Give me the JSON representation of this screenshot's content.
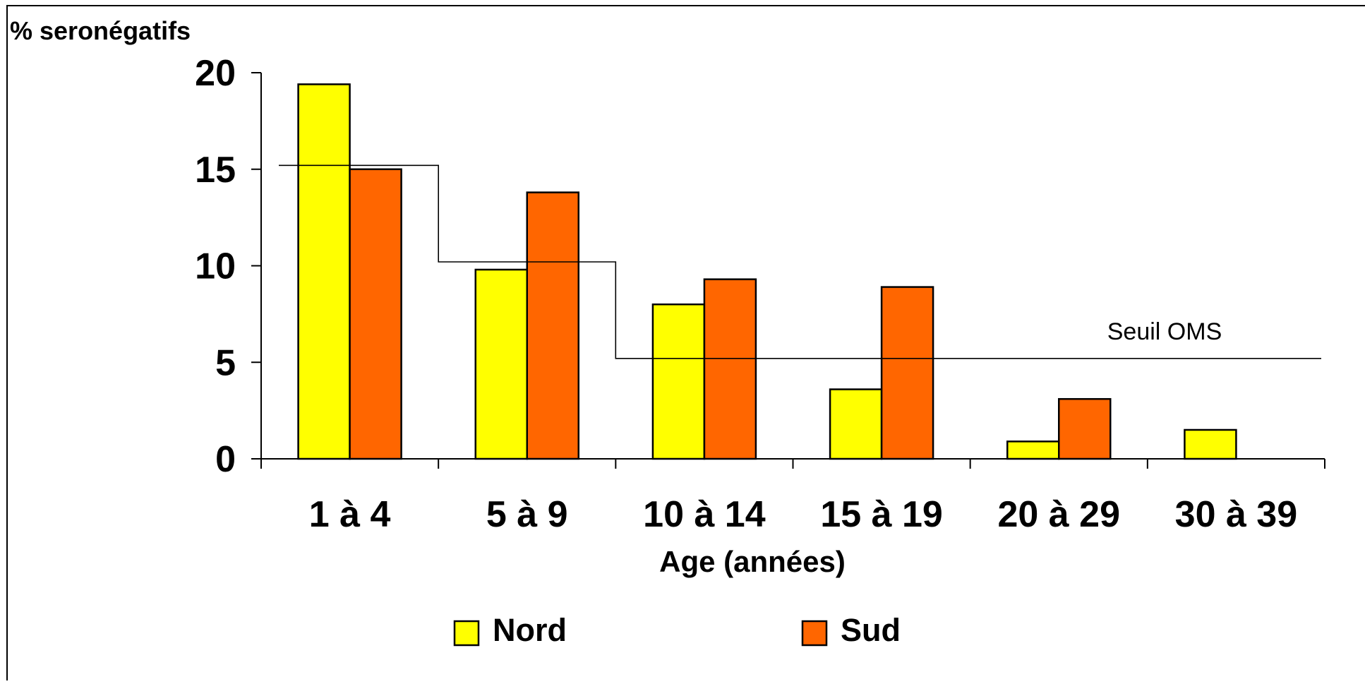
{
  "colors": {
    "Nord": "#FFFF00",
    "Sud": "#FF6600",
    "stroke": "#000000"
  },
  "chart_data": {
    "type": "bar",
    "title": "",
    "ylabel": "% seronégatifs",
    "xlabel": "Age (années)",
    "categories": [
      "1 à 4",
      "5 à 9",
      "10 à 14",
      "15 à 19",
      "20 à 29",
      "30 à 39"
    ],
    "series": [
      {
        "name": "Nord",
        "values": [
          19.4,
          9.8,
          8.0,
          3.6,
          0.9,
          1.5
        ]
      },
      {
        "name": "Sud",
        "values": [
          15.0,
          13.8,
          9.3,
          8.9,
          3.1,
          null
        ]
      }
    ],
    "ylim": [
      0,
      20
    ],
    "yticks": [
      0,
      5,
      10,
      15,
      20
    ],
    "grid": false,
    "legend_position": "bottom",
    "annotations": [
      {
        "text": "Seuil OMS",
        "type": "step-line",
        "levels": [
          {
            "from_category": 0,
            "to_category": 0,
            "y": 15.2
          },
          {
            "from_category": 1,
            "to_category": 1,
            "y": 10.2
          },
          {
            "from_category": 2,
            "to_category": 5,
            "y": 5.2
          }
        ]
      }
    ]
  }
}
